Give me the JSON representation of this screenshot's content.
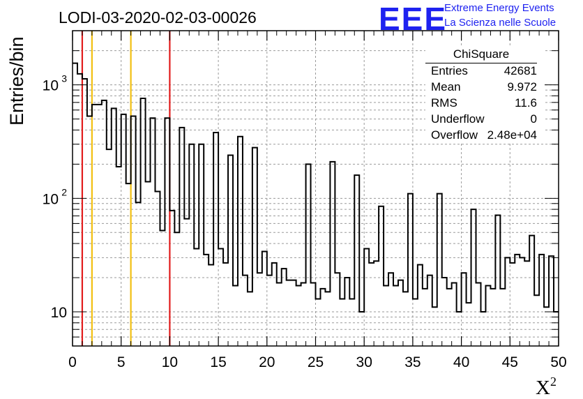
{
  "header": {
    "title": "LODI-03-2020-02-03-00026",
    "logo_letters": "EEE",
    "logo_line1": "Extreme Energy Events",
    "logo_line2": "La Scienza nelle Scuole"
  },
  "stats_box": {
    "title": "ChiSquare",
    "rows": [
      {
        "key": "Entries",
        "value": "42681"
      },
      {
        "key": "Mean",
        "value": "9.972"
      },
      {
        "key": "RMS",
        "value": "11.6"
      },
      {
        "key": "Underflow",
        "value": "0"
      },
      {
        "key": "Overflow",
        "value": "2.48e+04"
      }
    ]
  },
  "colors": {
    "line_red": "#e21d1d",
    "line_yellow": "#f2c012",
    "histogram": "#000000",
    "grid": "#9a9a9a",
    "logo": "#1e22f0"
  },
  "chart_data": {
    "type": "bar",
    "style": "step histogram",
    "xlabel": "X",
    "xlabel_superscript": "2",
    "ylabel": "Entries/bin",
    "xlim": [
      0,
      50
    ],
    "ylim": [
      5,
      3000
    ],
    "yscale": "log",
    "grid": true,
    "bin_width": 0.5,
    "x_ticks": [
      "0",
      "5",
      "10",
      "15",
      "20",
      "25",
      "30",
      "35",
      "40",
      "45",
      "50"
    ],
    "y_ticks": [
      {
        "value": 10,
        "label": "10"
      },
      {
        "value": 100,
        "label": "10",
        "exponent": "2"
      },
      {
        "value": 1000,
        "label": "10",
        "exponent": "3"
      }
    ],
    "vertical_lines": [
      {
        "x": 1,
        "color": "red"
      },
      {
        "x": 2,
        "color": "yellow"
      },
      {
        "x": 6,
        "color": "yellow"
      },
      {
        "x": 10,
        "color": "red"
      }
    ],
    "values": [
      1550,
      1250,
      1130,
      530,
      670,
      670,
      730,
      270,
      620,
      190,
      550,
      135,
      530,
      92,
      760,
      140,
      510,
      115,
      52,
      510,
      78,
      50,
      420,
      66,
      300,
      36,
      300,
      32,
      26,
      380,
      36,
      27,
      240,
      17,
      350,
      21,
      15,
      280,
      22,
      34,
      21,
      27,
      18,
      24,
      19,
      19,
      17,
      18,
      200,
      18,
      13,
      16,
      15,
      210,
      22,
      13,
      20,
      13,
      160,
      10,
      36,
      27,
      28,
      85,
      17,
      22,
      17,
      19,
      15,
      110,
      13,
      26,
      16,
      21,
      11,
      110,
      20,
      16,
      18,
      10,
      22,
      12,
      80,
      18,
      10,
      17,
      16,
      71,
      16,
      30,
      27,
      32,
      30,
      28,
      47,
      14,
      32,
      11,
      31,
      10
    ]
  }
}
